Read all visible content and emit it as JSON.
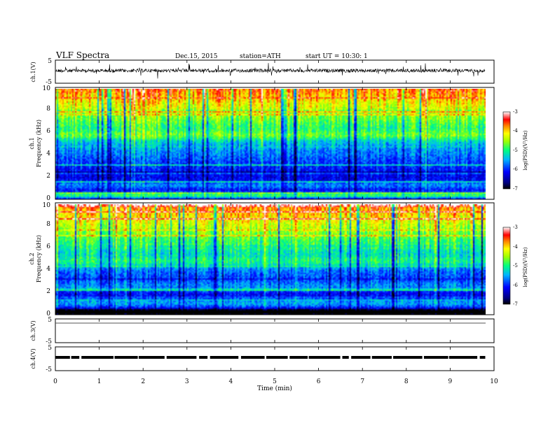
{
  "header": {
    "title": "VLF  Spectra",
    "date": "Dec.15, 2015",
    "station": "station=ATH",
    "start": "start  UT  =    10:30: 1"
  },
  "chart_data": [
    {
      "type": "line",
      "name": "ch1-waveform",
      "ylabel": "ch.1(V)",
      "ylim": [
        -5,
        5
      ],
      "yticks": [
        "5",
        "-5"
      ],
      "xlim": [
        0,
        10
      ],
      "data_end_min": 9.8
    },
    {
      "type": "heatmap",
      "name": "ch1-spectrogram",
      "ylabel": "Frequency  (kHz)",
      "channel_label": "ch.1",
      "ylim": [
        0,
        10
      ],
      "yticks": [
        "0",
        "2",
        "4",
        "6",
        "8",
        "10"
      ],
      "xlim": [
        0,
        10
      ],
      "colorbar": {
        "label": "log(PSD)(V²/Hz)",
        "range": [
          -7,
          -3
        ],
        "ticks": [
          "-3",
          "-4",
          "-5",
          "-6",
          "-7"
        ]
      }
    },
    {
      "type": "heatmap",
      "name": "ch2-spectrogram",
      "ylabel": "Frequency  (kHz)",
      "channel_label": "ch.2",
      "ylim": [
        0,
        10
      ],
      "yticks": [
        "0",
        "2",
        "4",
        "6",
        "8",
        "10"
      ],
      "xlim": [
        0,
        10
      ],
      "colorbar": {
        "label": "log(PSD)(V²/Hz)",
        "range": [
          -7,
          -3
        ],
        "ticks": [
          "-3",
          "-4",
          "-5",
          "-6",
          "-7"
        ]
      }
    },
    {
      "type": "line",
      "name": "ch3-waveform",
      "ylabel": "ch.3(V)",
      "ylim": [
        -5,
        5
      ],
      "yticks": [
        "5",
        "-5"
      ],
      "xlim": [
        0,
        10
      ]
    },
    {
      "type": "line",
      "name": "ch4-waveform",
      "ylabel": "ch.4(V)",
      "ylim": [
        -5,
        5
      ],
      "yticks": [
        "5",
        "-5"
      ],
      "xlim": [
        0,
        10
      ]
    }
  ],
  "xaxis": {
    "label": "Time  (min)",
    "ticks": [
      "0",
      "1",
      "2",
      "3",
      "4",
      "5",
      "6",
      "7",
      "8",
      "9",
      "10"
    ]
  }
}
